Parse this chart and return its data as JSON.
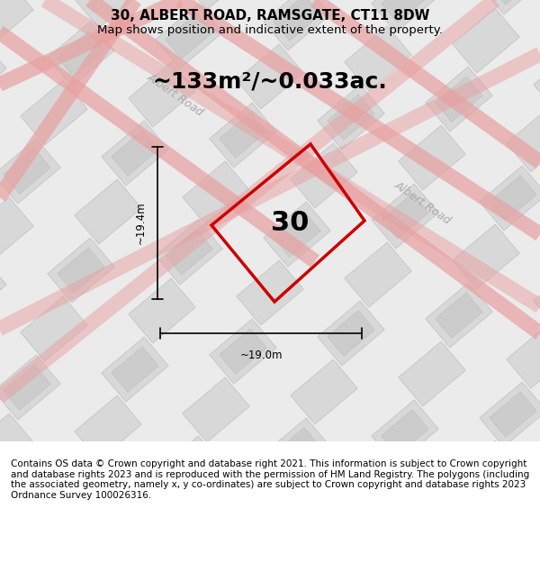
{
  "title": "30, ALBERT ROAD, RAMSGATE, CT11 8DW",
  "subtitle": "Map shows position and indicative extent of the property.",
  "area_text": "~133m²/~0.033ac.",
  "plot_number": "30",
  "dim_width": "~19.0m",
  "dim_height": "~19.4m",
  "footnote": "Contains OS data © Crown copyright and database right 2021. This information is subject to Crown copyright and database rights 2023 and is reproduced with the permission of HM Land Registry. The polygons (including the associated geometry, namely x, y co-ordinates) are subject to Crown copyright and database rights 2023 Ordnance Survey 100026316.",
  "bg_color": "#f0f0f0",
  "map_bg": "#ebebeb",
  "plot_color": "#cc0000",
  "road_label_1": "Albert Road",
  "road_label_2": "Albert Road",
  "title_fontsize": 11,
  "subtitle_fontsize": 9.5,
  "area_fontsize": 18,
  "footnote_fontsize": 7.5
}
